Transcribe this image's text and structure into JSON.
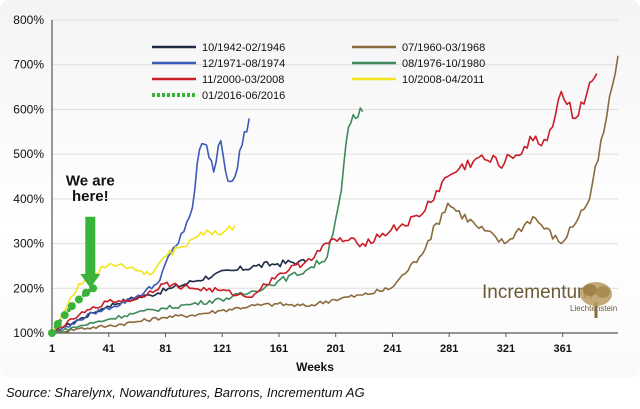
{
  "chart_data": {
    "type": "line",
    "title": "",
    "xlabel": "Weeks",
    "ylabel": "",
    "xlim": [
      1,
      400
    ],
    "ylim": [
      100,
      800
    ],
    "x_ticks": [
      1,
      41,
      81,
      121,
      161,
      201,
      241,
      281,
      321,
      361
    ],
    "y_ticks": [
      100,
      200,
      300,
      400,
      500,
      600,
      700,
      800
    ],
    "y_tick_labels": [
      "100%",
      "200%",
      "300%",
      "400%",
      "500%",
      "600%",
      "700%",
      "800%"
    ],
    "legend_position": "top",
    "series": [
      {
        "name": "10/1942-02/1946",
        "color": "#1f2a44",
        "style": "solid",
        "x": [
          1,
          10,
          20,
          30,
          40,
          55,
          70,
          85,
          100,
          115,
          130,
          145,
          160,
          175,
          180
        ],
        "values": [
          100,
          115,
          130,
          145,
          160,
          175,
          185,
          200,
          215,
          230,
          240,
          250,
          255,
          260,
          258
        ]
      },
      {
        "name": "07/1960-03/1968",
        "color": "#8b6b3d",
        "style": "solid",
        "x": [
          1,
          20,
          40,
          60,
          80,
          100,
          120,
          140,
          160,
          180,
          200,
          220,
          240,
          260,
          280,
          300,
          320,
          340,
          360,
          380,
          390,
          400
        ],
        "values": [
          100,
          110,
          115,
          125,
          135,
          140,
          150,
          160,
          165,
          160,
          175,
          185,
          200,
          270,
          390,
          340,
          300,
          360,
          300,
          400,
          550,
          720
        ]
      },
      {
        "name": "12/1971-08/1974",
        "color": "#3a5bb5",
        "style": "solid",
        "x": [
          1,
          15,
          30,
          45,
          60,
          75,
          85,
          90,
          100,
          105,
          110,
          115,
          120,
          125,
          130,
          135,
          140
        ],
        "values": [
          100,
          120,
          145,
          160,
          180,
          210,
          280,
          300,
          380,
          510,
          520,
          460,
          530,
          440,
          450,
          520,
          580
        ]
      },
      {
        "name": "08/1976-10/1980",
        "color": "#3f8a5a",
        "style": "solid",
        "x": [
          1,
          20,
          40,
          60,
          80,
          100,
          120,
          140,
          160,
          180,
          195,
          205,
          210,
          215,
          220
        ],
        "values": [
          100,
          115,
          130,
          145,
          155,
          165,
          175,
          190,
          215,
          240,
          270,
          420,
          560,
          580,
          595
        ]
      },
      {
        "name": "11/2000-03/2008",
        "color": "#c81e28",
        "style": "solid",
        "x": [
          1,
          20,
          40,
          60,
          80,
          100,
          120,
          140,
          160,
          180,
          200,
          220,
          240,
          260,
          280,
          300,
          320,
          340,
          350,
          360,
          370,
          380,
          385
        ],
        "values": [
          100,
          140,
          170,
          175,
          210,
          200,
          195,
          180,
          230,
          260,
          310,
          300,
          330,
          360,
          450,
          490,
          480,
          530,
          530,
          640,
          580,
          660,
          680
        ]
      },
      {
        "name": "10/2008-04/2011",
        "color": "#f2e51b",
        "style": "solid",
        "x": [
          1,
          10,
          20,
          30,
          40,
          50,
          60,
          70,
          80,
          90,
          100,
          110,
          120,
          130
        ],
        "values": [
          100,
          150,
          210,
          230,
          250,
          255,
          240,
          230,
          270,
          290,
          310,
          330,
          320,
          340
        ]
      },
      {
        "name": "01/2016-06/2016",
        "color": "#3ab33a",
        "style": "dotted",
        "x": [
          1,
          5,
          10,
          15,
          20,
          25,
          30
        ],
        "values": [
          100,
          120,
          140,
          160,
          175,
          190,
          200
        ]
      }
    ],
    "annotations": [
      {
        "text": "We are",
        "x": 28,
        "y": 430
      },
      {
        "text": "here!",
        "x": 28,
        "y": 395
      }
    ]
  },
  "brand": {
    "name": "Incrementum",
    "sub": "Liechtenstein"
  },
  "caption": {
    "text": "Source: Sharelynx, Nowandfutures, Barrons, Incrementum AG"
  },
  "colors": {
    "arrow": "#3ab33a",
    "grid": "#dddddd"
  }
}
